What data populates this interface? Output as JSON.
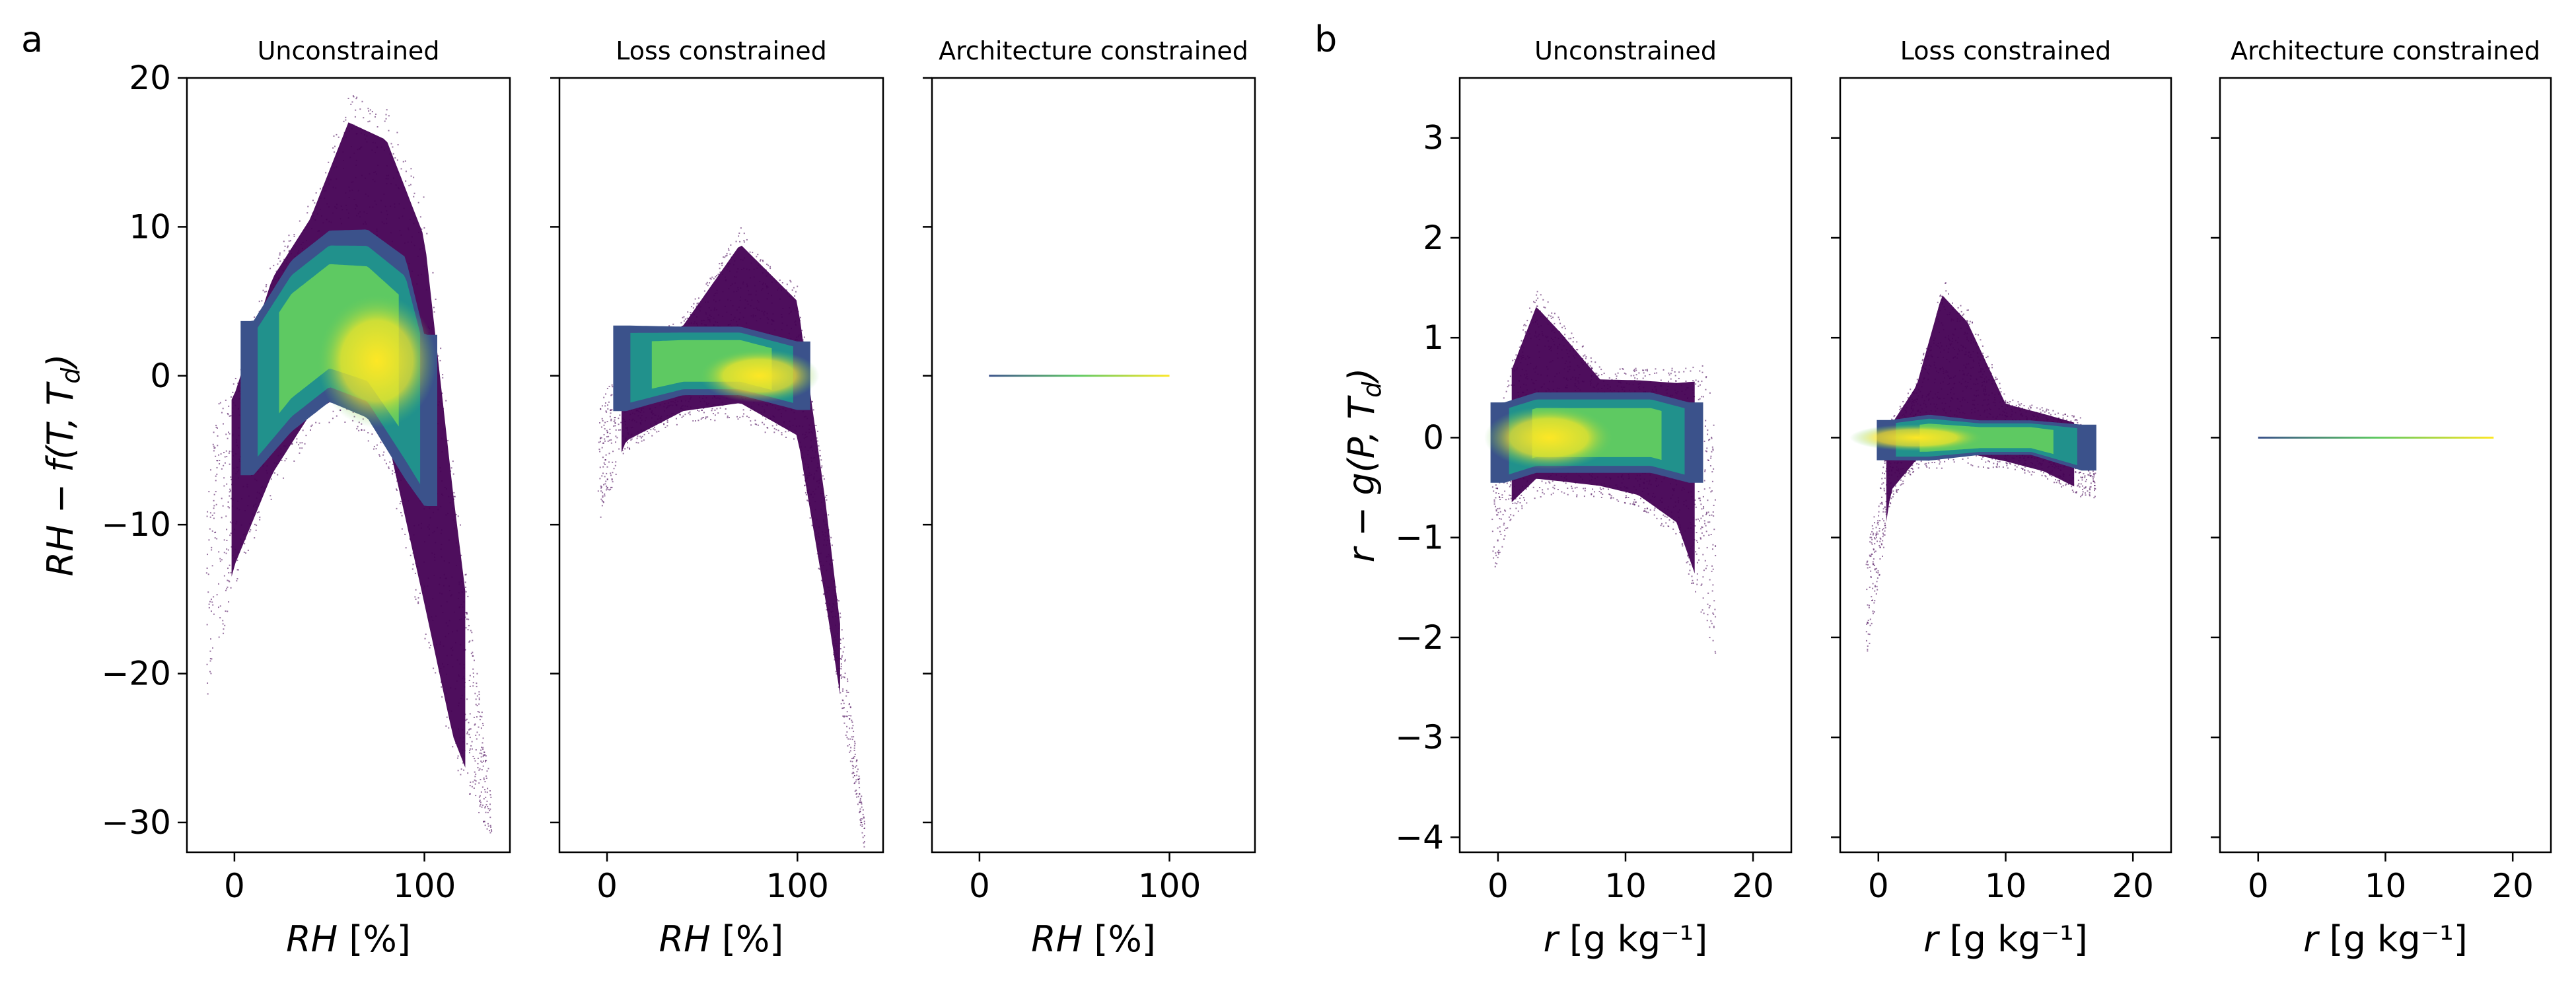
{
  "figure": {
    "panel_letters": [
      "a",
      "b"
    ]
  },
  "chart_data": [
    {
      "type": "heatmap",
      "panel": "a",
      "title": "Unconstrained",
      "xlabel": "RH [%]",
      "ylabel": "RH − f(T, T_d)",
      "xlim": [
        -25,
        145
      ],
      "ylim": [
        -32,
        20
      ],
      "xticks": [
        0,
        100
      ],
      "yticks": [
        -30,
        -20,
        -10,
        0,
        10,
        20
      ],
      "colormap": [
        "#440154",
        "#3b528b",
        "#21918c",
        "#5ec962",
        "#fde725"
      ],
      "density": {
        "envelope_x": [
          -15,
          0,
          20,
          40,
          60,
          80,
          100,
          115,
          135
        ],
        "envelope_upper": [
          -3,
          0,
          8,
          12,
          19,
          18,
          12,
          -6,
          -28
        ],
        "envelope_lower": [
          -22,
          -14,
          -8,
          -4,
          -3,
          -6,
          -18,
          -26,
          -31
        ],
        "core_x": [
          10,
          30,
          50,
          70,
          90,
          100
        ],
        "core_upper": [
          3,
          7,
          9,
          9,
          7,
          2
        ],
        "core_lower": [
          -6,
          -3,
          -1,
          -2,
          -6,
          -8
        ],
        "peak": [
          75,
          1
        ]
      }
    },
    {
      "type": "heatmap",
      "panel": "a",
      "title": "Loss constrained",
      "xlabel": "RH [%]",
      "ylabel": "",
      "xlim": [
        -25,
        145
      ],
      "ylim": [
        -32,
        20
      ],
      "xticks": [
        0,
        100
      ],
      "yticks": [
        -30,
        -20,
        -10,
        0,
        10,
        20
      ],
      "colormap": [
        "#440154",
        "#3b528b",
        "#21918c",
        "#5ec962",
        "#fde725"
      ],
      "density": {
        "envelope_x": [
          -5,
          10,
          40,
          70,
          100,
          115,
          135
        ],
        "envelope_upper": [
          -2,
          2,
          4,
          10,
          6,
          -8,
          -30
        ],
        "envelope_lower": [
          -10,
          -5,
          -3,
          -3,
          -5,
          -16,
          -32
        ],
        "core_x": [
          10,
          40,
          70,
          100
        ],
        "core_upper": [
          3,
          3,
          3,
          2
        ],
        "core_lower": [
          -2,
          -1,
          -1,
          -2
        ],
        "peak": [
          80,
          0
        ]
      }
    },
    {
      "type": "heatmap",
      "panel": "a",
      "title": "Architecture constrained",
      "xlabel": "RH [%]",
      "ylabel": "",
      "xlim": [
        -25,
        145
      ],
      "ylim": [
        -32,
        20
      ],
      "xticks": [
        0,
        100
      ],
      "yticks": [
        -30,
        -20,
        -10,
        0,
        10,
        20
      ],
      "colormap": [
        "#440154",
        "#3b528b",
        "#21918c",
        "#5ec962",
        "#fde725"
      ],
      "line": {
        "x": [
          5,
          100
        ],
        "y": 0
      }
    },
    {
      "type": "heatmap",
      "panel": "b",
      "title": "Unconstrained",
      "xlabel": "r [g kg⁻¹]",
      "ylabel": "r − g(P, T_d)",
      "xlim": [
        -3,
        23
      ],
      "ylim": [
        -4.15,
        3.6
      ],
      "xticks": [
        0,
        10,
        20
      ],
      "yticks": [
        -4,
        -3,
        -2,
        -1,
        0,
        1,
        2,
        3
      ],
      "colormap": [
        "#440154",
        "#3b528b",
        "#21918c",
        "#5ec962",
        "#fde725"
      ],
      "density": {
        "envelope_x": [
          -0.5,
          1,
          3,
          5,
          8,
          11,
          14,
          16,
          17
        ],
        "envelope_upper": [
          -0.2,
          0.8,
          1.5,
          1.2,
          0.7,
          0.7,
          0.7,
          0.8,
          0.2
        ],
        "envelope_lower": [
          -1.4,
          -0.8,
          -0.6,
          -0.6,
          -0.6,
          -0.7,
          -1.0,
          -1.8,
          -2.2
        ],
        "core_x": [
          0.5,
          3,
          6,
          9,
          12,
          15
        ],
        "core_upper": [
          0.3,
          0.4,
          0.4,
          0.4,
          0.4,
          0.3
        ],
        "core_lower": [
          -0.4,
          -0.3,
          -0.3,
          -0.3,
          -0.3,
          -0.4
        ],
        "peak": [
          4,
          0
        ]
      }
    },
    {
      "type": "heatmap",
      "panel": "b",
      "title": "Loss constrained",
      "xlabel": "r [g kg⁻¹]",
      "ylabel": "",
      "xlim": [
        -3,
        23
      ],
      "ylim": [
        -4.15,
        3.6
      ],
      "xticks": [
        0,
        10,
        20
      ],
      "yticks": [
        -4,
        -3,
        -2,
        -1,
        0,
        1,
        2,
        3
      ],
      "colormap": [
        "#440154",
        "#3b528b",
        "#21918c",
        "#5ec962",
        "#fde725"
      ],
      "density": {
        "envelope_x": [
          -1,
          1,
          3,
          5,
          7,
          10,
          13,
          16,
          17
        ],
        "envelope_upper": [
          -1.2,
          0.2,
          0.6,
          1.6,
          1.3,
          0.4,
          0.3,
          0.2,
          -0.3
        ],
        "envelope_lower": [
          -2.3,
          -0.6,
          -0.3,
          -0.3,
          -0.3,
          -0.3,
          -0.4,
          -0.6,
          -0.6
        ],
        "core_x": [
          1,
          4,
          8,
          12,
          16
        ],
        "core_upper": [
          0.15,
          0.2,
          0.15,
          0.15,
          0.1
        ],
        "core_lower": [
          -0.2,
          -0.2,
          -0.15,
          -0.15,
          -0.3
        ],
        "peak": [
          3,
          0
        ]
      }
    },
    {
      "type": "heatmap",
      "panel": "b",
      "title": "Architecture constrained",
      "xlabel": "r [g kg⁻¹]",
      "ylabel": "",
      "xlim": [
        -3,
        23
      ],
      "ylim": [
        -4.15,
        3.6
      ],
      "xticks": [
        0,
        10,
        20
      ],
      "yticks": [
        -4,
        -3,
        -2,
        -1,
        0,
        1,
        2,
        3
      ],
      "colormap": [
        "#440154",
        "#3b528b",
        "#21918c",
        "#5ec962",
        "#fde725"
      ],
      "line": {
        "x": [
          0,
          18.5
        ],
        "y": 0
      }
    }
  ]
}
